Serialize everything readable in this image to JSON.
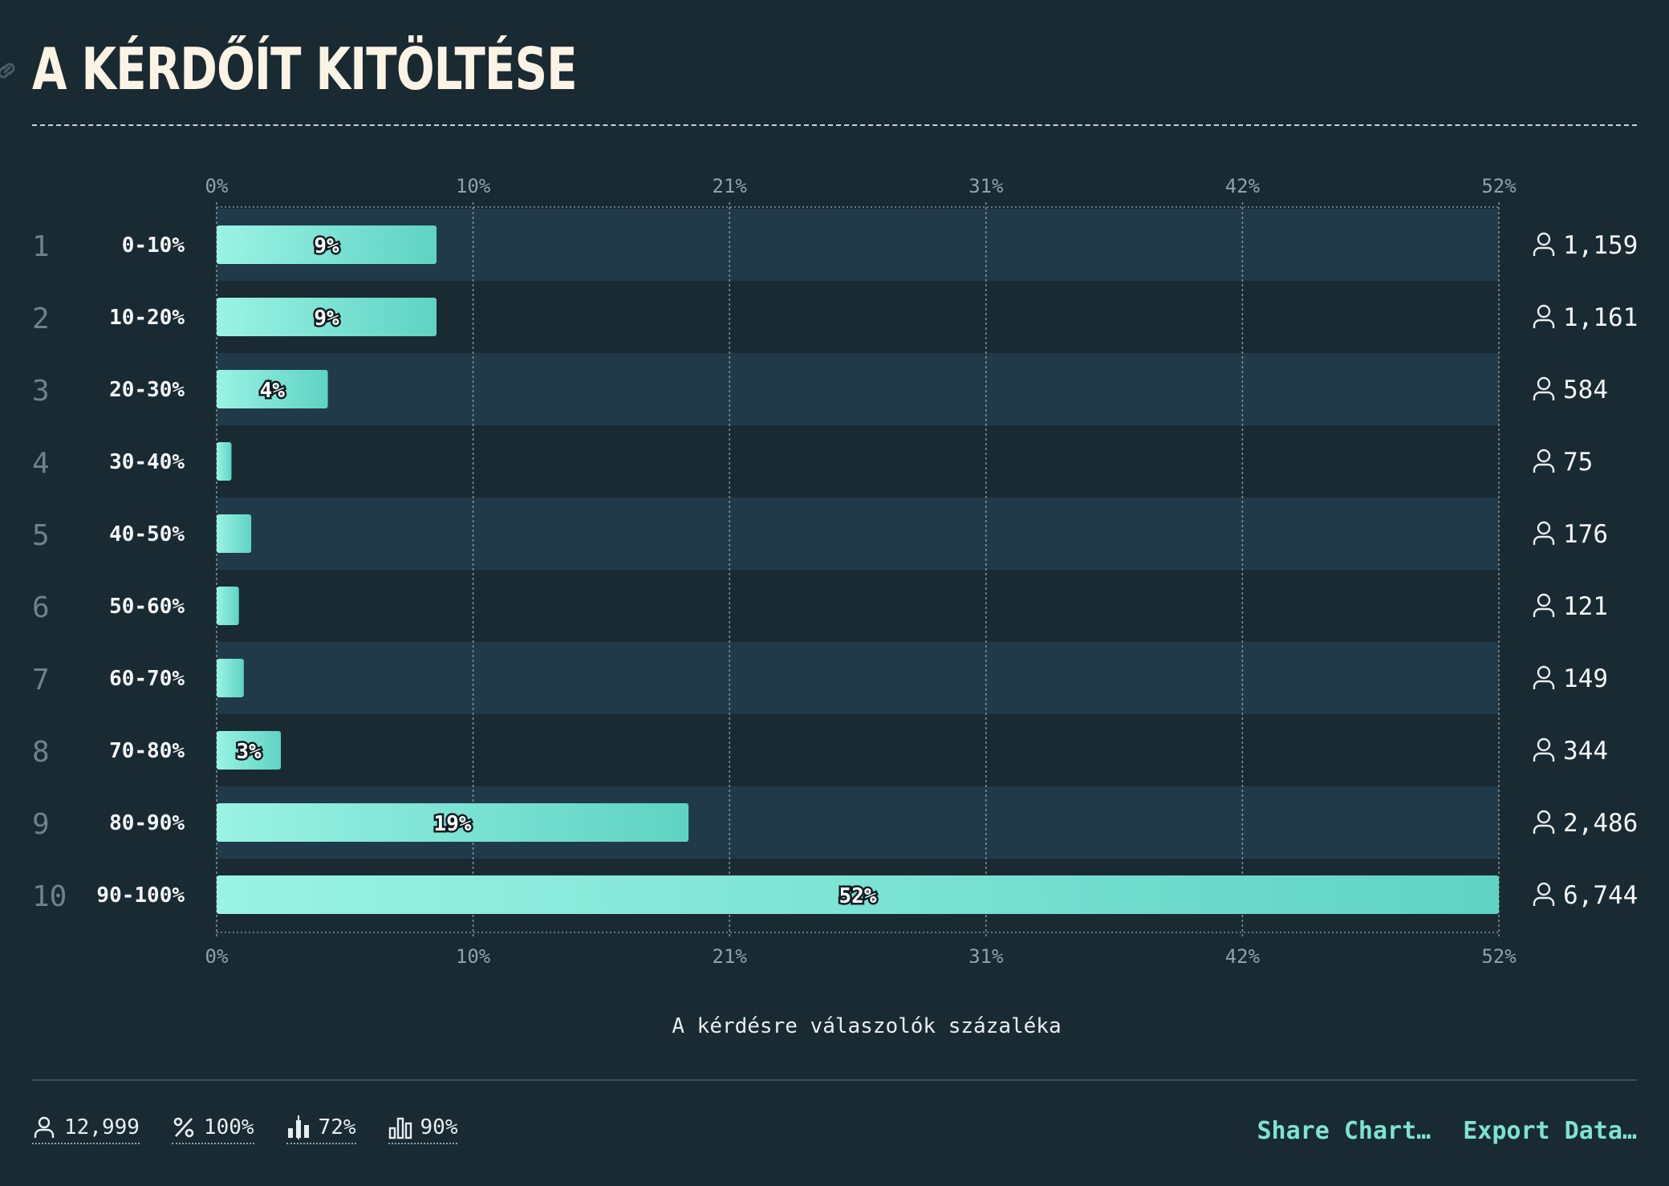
{
  "title": "A KÉRDŐÍT KITÖLTÉSE",
  "chart_data": {
    "type": "bar",
    "orientation": "horizontal",
    "categories": [
      "0-10%",
      "10-20%",
      "20-30%",
      "30-40%",
      "40-50%",
      "50-60%",
      "60-70%",
      "70-80%",
      "80-90%",
      "90-100%"
    ],
    "ranks": [
      "1",
      "2",
      "3",
      "4",
      "5",
      "6",
      "7",
      "8",
      "9",
      "10"
    ],
    "values": [
      8.9,
      8.9,
      4.5,
      0.6,
      1.4,
      0.9,
      1.1,
      2.6,
      19.1,
      51.9
    ],
    "value_labels": [
      "9%",
      "9%",
      "4%",
      "",
      "",
      "",
      "",
      "3%",
      "19%",
      "52%"
    ],
    "counts": [
      "1,159",
      "1,161",
      "584",
      "75",
      "176",
      "121",
      "149",
      "344",
      "2,486",
      "6,744"
    ],
    "xlim": [
      0,
      51.9
    ],
    "x_ticks": [
      "0%",
      "10%",
      "21%",
      "31%",
      "42%",
      "52%"
    ],
    "xlabel": "A kérdésre válaszolók százaléka",
    "grid": true,
    "bar_color_start": "#9af3e4",
    "bar_color_end": "#5fd3c3",
    "row_band_color": "#203a4a"
  },
  "stats": {
    "respondents": "12,999",
    "percent": "100%",
    "median": "72%",
    "high": "90%"
  },
  "actions": {
    "share": "Share Chart…",
    "export": "Export Data…"
  }
}
